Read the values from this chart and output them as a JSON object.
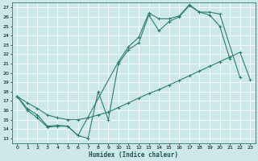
{
  "xlabel": "Humidex (Indice chaleur)",
  "bg_color": "#cce8e8",
  "grid_color": "#ffffff",
  "line_color": "#2d7d6e",
  "xlim": [
    -0.5,
    23.5
  ],
  "ylim": [
    12.5,
    27.5
  ],
  "xticks": [
    0,
    1,
    2,
    3,
    4,
    5,
    6,
    7,
    8,
    9,
    10,
    11,
    12,
    13,
    14,
    15,
    16,
    17,
    18,
    19,
    20,
    21,
    22,
    23
  ],
  "yticks": [
    13,
    14,
    15,
    16,
    17,
    18,
    19,
    20,
    21,
    22,
    23,
    24,
    25,
    26,
    27
  ],
  "line1_x": [
    0,
    1,
    2,
    3,
    4,
    5,
    6,
    7,
    8,
    9,
    10,
    11,
    12,
    13,
    14,
    15,
    16,
    17,
    18,
    19,
    20,
    21
  ],
  "line1_y": [
    17.5,
    16.0,
    15.2,
    14.2,
    14.3,
    14.3,
    13.3,
    13.0,
    18.0,
    15.0,
    21.0,
    22.5,
    23.2,
    26.2,
    24.5,
    25.5,
    26.0,
    27.2,
    26.5,
    26.2,
    25.0,
    21.5
  ],
  "line2_x": [
    0,
    1,
    2,
    3,
    4,
    5,
    6,
    10,
    11,
    12,
    13,
    14,
    15,
    16,
    17,
    18,
    19,
    20,
    22,
    23
  ],
  "line2_y": [
    17.5,
    16.2,
    15.5,
    14.3,
    14.4,
    14.3,
    13.3,
    21.2,
    22.8,
    23.8,
    26.4,
    25.8,
    25.8,
    26.1,
    27.3,
    26.5,
    26.5,
    26.3,
    19.5,
    null
  ],
  "line3_x": [
    0,
    1,
    2,
    3,
    4,
    5,
    6,
    7,
    8,
    9,
    10,
    11,
    12,
    13,
    14,
    15,
    16,
    17,
    18,
    19,
    20,
    21,
    22,
    23
  ],
  "line3_y": [
    17.5,
    16.8,
    16.2,
    15.5,
    15.2,
    15.0,
    15.0,
    15.2,
    15.5,
    15.8,
    16.3,
    16.8,
    17.3,
    17.8,
    18.2,
    18.7,
    19.2,
    19.7,
    20.2,
    20.7,
    21.2,
    21.7,
    22.2,
    19.3
  ]
}
